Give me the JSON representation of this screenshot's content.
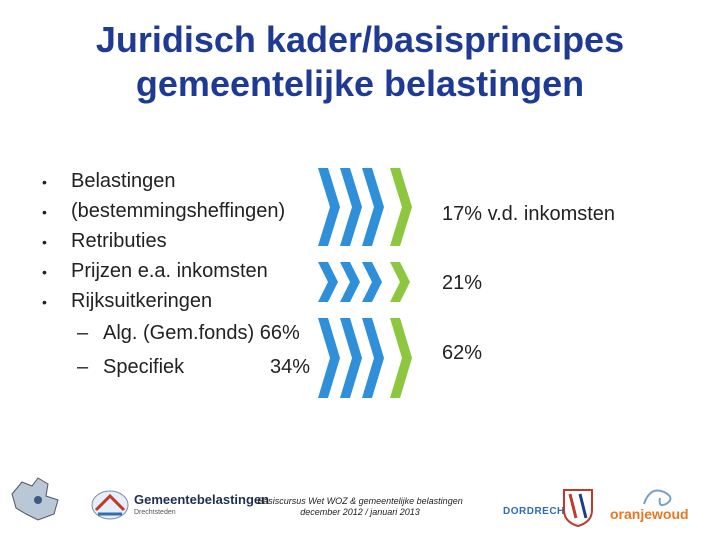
{
  "title": {
    "line1": "Juridisch kader/basisprincipes",
    "line2": "gemeentelijke belastingen"
  },
  "bullets": [
    "Belastingen",
    "(bestemmingsheffingen)",
    "Retributies",
    "Prijzen e.a. inkomsten",
    "Rijksuitkeringen"
  ],
  "sub_bullets": [
    {
      "label": "Alg. (Gem.fonds) 66%",
      "pct": ""
    },
    {
      "label": "Specifiek",
      "pct": "34%"
    }
  ],
  "percentages": {
    "belastingen": "17% v.d. inkomsten",
    "prijzen": "21%",
    "rijksuitkeringen": "62%"
  },
  "footer": {
    "line1": "Basiscursus Wet WOZ & gemeentelijke belastingen",
    "line2": "december 2012 / januari 2013"
  },
  "logos": {
    "gemeentebelastingen": "Gemeentebelastingen",
    "drechtsteden": "Drechtsteden",
    "dordrecht": "DORDRECHT",
    "oranjewoud": "oranjewoud",
    "bullet_char": "•",
    "dash_char": "–"
  },
  "colors": {
    "title": "#1f3a93",
    "chevron_blue": "#2f8fd8",
    "chevron_green": "#8dc63f"
  }
}
